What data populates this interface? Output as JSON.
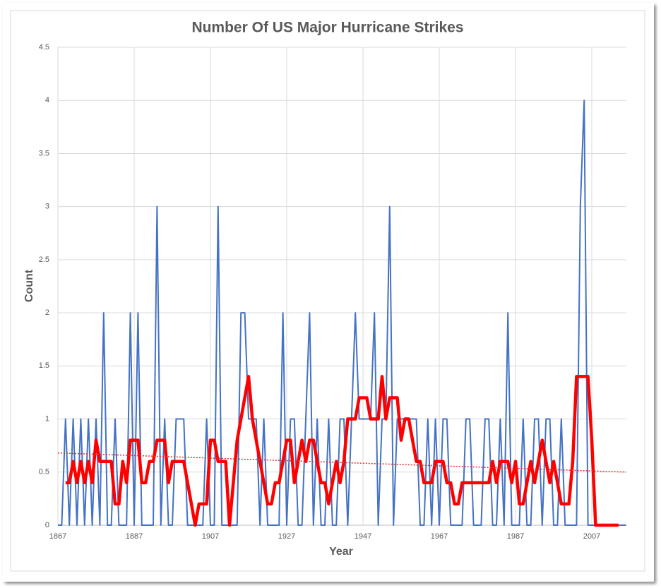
{
  "chart_data": {
    "type": "line",
    "title": "Number Of US Major Hurricane Strikes",
    "x_label": "Year",
    "y_label": "Count",
    "x": [
      1867,
      1868,
      1869,
      1870,
      1871,
      1872,
      1873,
      1874,
      1875,
      1876,
      1877,
      1878,
      1879,
      1880,
      1881,
      1882,
      1883,
      1884,
      1885,
      1886,
      1887,
      1888,
      1889,
      1890,
      1891,
      1892,
      1893,
      1894,
      1895,
      1896,
      1897,
      1898,
      1899,
      1900,
      1901,
      1902,
      1903,
      1904,
      1905,
      1906,
      1907,
      1908,
      1909,
      1910,
      1911,
      1912,
      1913,
      1914,
      1915,
      1916,
      1917,
      1918,
      1919,
      1920,
      1921,
      1922,
      1923,
      1924,
      1925,
      1926,
      1927,
      1928,
      1929,
      1930,
      1931,
      1932,
      1933,
      1934,
      1935,
      1936,
      1937,
      1938,
      1939,
      1940,
      1941,
      1942,
      1943,
      1944,
      1945,
      1946,
      1947,
      1948,
      1949,
      1950,
      1951,
      1952,
      1953,
      1954,
      1955,
      1956,
      1957,
      1958,
      1959,
      1960,
      1961,
      1962,
      1963,
      1964,
      1965,
      1966,
      1967,
      1968,
      1969,
      1970,
      1971,
      1972,
      1973,
      1974,
      1975,
      1976,
      1977,
      1978,
      1979,
      1980,
      1981,
      1982,
      1983,
      1984,
      1985,
      1986,
      1987,
      1988,
      1989,
      1990,
      1991,
      1992,
      1993,
      1994,
      1995,
      1996,
      1997,
      1998,
      1999,
      2000,
      2001,
      2002,
      2003,
      2004,
      2005,
      2006,
      2007,
      2008,
      2009,
      2010,
      2011,
      2012,
      2013,
      2014,
      2015,
      2016
    ],
    "series": [
      {
        "color": "#4472c4",
        "width": 2,
        "values": [
          0,
          0,
          1,
          0,
          1,
          0,
          1,
          0,
          1,
          0,
          1,
          0,
          2,
          0,
          0,
          1,
          0,
          0,
          0,
          2,
          0,
          2,
          0,
          0,
          0,
          0,
          3,
          0,
          1,
          0,
          0,
          1,
          1,
          1,
          0,
          0,
          0,
          0,
          0,
          1,
          0,
          0,
          3,
          0,
          0,
          0,
          0,
          0,
          2,
          2,
          1,
          1,
          1,
          0,
          1,
          0,
          0,
          0,
          0,
          2,
          0,
          1,
          1,
          0,
          0,
          1,
          2,
          0,
          1,
          0,
          0,
          1,
          0,
          0,
          1,
          1,
          0,
          1,
          2,
          1,
          1,
          1,
          1,
          2,
          0,
          1,
          1,
          3,
          0,
          1,
          1,
          1,
          1,
          1,
          1,
          0,
          0,
          1,
          0,
          1,
          0,
          1,
          1,
          0,
          0,
          0,
          0,
          1,
          1,
          0,
          0,
          0,
          1,
          1,
          0,
          0,
          1,
          0,
          2,
          0,
          0,
          0,
          1,
          0,
          0,
          1,
          1,
          0,
          1,
          1,
          0,
          0,
          1,
          0,
          0,
          0,
          0,
          3,
          4,
          0,
          0,
          0,
          0,
          0,
          0,
          0,
          0,
          0,
          0,
          0
        ]
      },
      {
        "color": "#ff0000",
        "width": 4.5,
        "values": [
          null,
          null,
          0.4,
          0.4,
          0.6,
          0.4,
          0.6,
          0.4,
          0.6,
          0.4,
          0.8,
          0.6,
          0.6,
          0.6,
          0.6,
          0.2,
          0.2,
          0.6,
          0.4,
          0.8,
          0.8,
          0.8,
          0.4,
          0.4,
          0.6,
          0.6,
          0.8,
          0.8,
          0.8,
          0.4,
          0.6,
          0.6,
          0.6,
          0.6,
          0.4,
          0.2,
          0,
          0.2,
          0.2,
          0.2,
          0.8,
          0.8,
          0.6,
          0.6,
          0.6,
          0,
          0.4,
          0.8,
          1,
          1.2,
          1.4,
          1,
          0.8,
          0.6,
          0.4,
          0.2,
          0.2,
          0.4,
          0.4,
          0.6,
          0.8,
          0.8,
          0.4,
          0.6,
          0.8,
          0.6,
          0.8,
          0.8,
          0.6,
          0.4,
          0.4,
          0.2,
          0.4,
          0.6,
          0.4,
          0.6,
          1,
          1,
          1,
          1.2,
          1.2,
          1.2,
          1,
          1,
          1,
          1.4,
          1,
          1.2,
          1.2,
          1.2,
          0.8,
          1,
          1,
          0.8,
          0.6,
          0.6,
          0.4,
          0.4,
          0.4,
          0.6,
          0.6,
          0.6,
          0.4,
          0.4,
          0.2,
          0.2,
          0.4,
          0.4,
          0.4,
          0.4,
          0.4,
          0.4,
          0.4,
          0.4,
          0.6,
          0.4,
          0.6,
          0.6,
          0.6,
          0.4,
          0.6,
          0.2,
          0.2,
          0.4,
          0.6,
          0.4,
          0.6,
          0.8,
          0.6,
          0.4,
          0.6,
          0.4,
          0.2,
          0.2,
          0.2,
          0.6,
          1.4,
          1.4,
          1.4,
          1.4,
          0.8,
          0,
          0,
          0,
          0,
          0,
          0,
          0,
          null,
          null
        ]
      }
    ],
    "trendline": {
      "x": [
        1867,
        2016
      ],
      "values": [
        0.68,
        0.5
      ],
      "color": "#e03030",
      "style": "dotted"
    },
    "xlim": [
      1867,
      2016
    ],
    "xticks": [
      1867,
      1887,
      1907,
      1927,
      1947,
      1967,
      1987,
      2007
    ],
    "ylim": [
      0,
      4.5
    ],
    "yticks": [
      0,
      0.5,
      1,
      1.5,
      2,
      2.5,
      3,
      3.5,
      4,
      4.5
    ],
    "grid": true
  }
}
